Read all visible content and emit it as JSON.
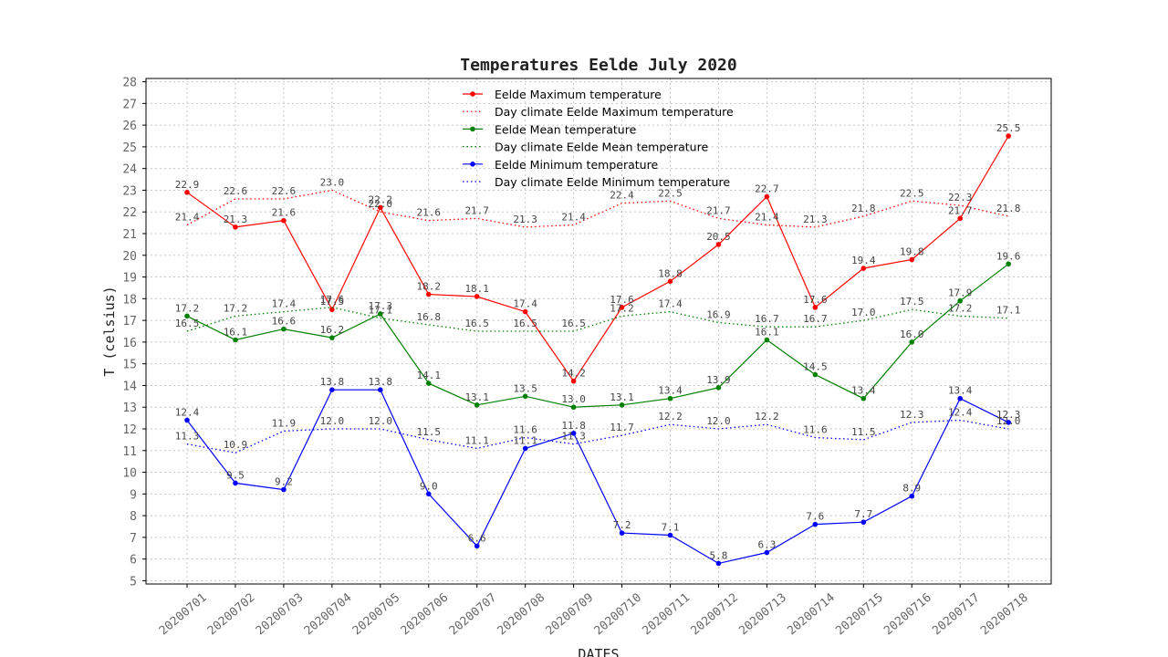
{
  "chart_data": {
    "type": "line",
    "title": "Temperatures Eelde July 2020",
    "xlabel": "DATES",
    "ylabel": "T (celsius)",
    "ylim": [
      4.85,
      28.15
    ],
    "yticks": [
      5,
      6,
      7,
      8,
      9,
      10,
      11,
      12,
      13,
      14,
      15,
      16,
      17,
      18,
      19,
      20,
      21,
      22,
      23,
      24,
      25,
      26,
      27,
      28
    ],
    "grid": true,
    "legend_position": "top-center",
    "categories": [
      "20200701",
      "20200702",
      "20200703",
      "20200704",
      "20200705",
      "20200706",
      "20200707",
      "20200708",
      "20200709",
      "20200710",
      "20200711",
      "20200712",
      "20200713",
      "20200714",
      "20200715",
      "20200716",
      "20200717",
      "20200718"
    ],
    "series": [
      {
        "name": "Eelde Maximum temperature",
        "color": "#ff0000",
        "style": "solid",
        "marker": true,
        "values": [
          22.9,
          21.3,
          21.6,
          17.5,
          22.2,
          18.2,
          18.1,
          17.4,
          14.2,
          17.6,
          18.8,
          20.5,
          22.7,
          17.6,
          19.4,
          19.8,
          21.7,
          25.5
        ]
      },
      {
        "name": "Day climate Eelde Maximum temperature",
        "color": "#ff0000",
        "style": "dotted",
        "marker": false,
        "values": [
          21.4,
          22.6,
          22.6,
          23.0,
          22.0,
          21.6,
          21.7,
          21.3,
          21.4,
          22.4,
          22.5,
          21.7,
          21.4,
          21.3,
          21.8,
          22.5,
          22.3,
          21.8
        ]
      },
      {
        "name": "Eelde Mean temperature",
        "color": "#008000",
        "style": "solid",
        "marker": true,
        "values": [
          17.2,
          16.1,
          16.6,
          16.2,
          17.3,
          14.1,
          13.1,
          13.5,
          13.0,
          13.1,
          13.4,
          13.9,
          16.1,
          14.5,
          13.4,
          16.0,
          17.9,
          19.6
        ]
      },
      {
        "name": "Day climate Eelde Mean temperature",
        "color": "#008000",
        "style": "dotted",
        "marker": false,
        "values": [
          16.5,
          17.2,
          17.4,
          17.6,
          17.1,
          16.8,
          16.5,
          16.5,
          16.5,
          17.2,
          17.4,
          16.9,
          16.7,
          16.7,
          17.0,
          17.5,
          17.2,
          17.1
        ]
      },
      {
        "name": "Eelde Minimum temperature",
        "color": "#0000ff",
        "style": "solid",
        "marker": true,
        "values": [
          12.4,
          9.5,
          9.2,
          13.8,
          13.8,
          9.0,
          6.6,
          11.1,
          11.8,
          7.2,
          7.1,
          5.8,
          6.3,
          7.6,
          7.7,
          8.9,
          13.4,
          12.3
        ]
      },
      {
        "name": "Day climate Eelde Minimum temperature",
        "color": "#0000ff",
        "style": "dotted",
        "marker": false,
        "values": [
          11.3,
          10.9,
          11.9,
          12.0,
          12.0,
          11.5,
          11.1,
          11.6,
          11.3,
          11.7,
          12.2,
          12.0,
          12.2,
          11.6,
          11.5,
          12.3,
          12.4,
          12.0
        ]
      }
    ]
  }
}
